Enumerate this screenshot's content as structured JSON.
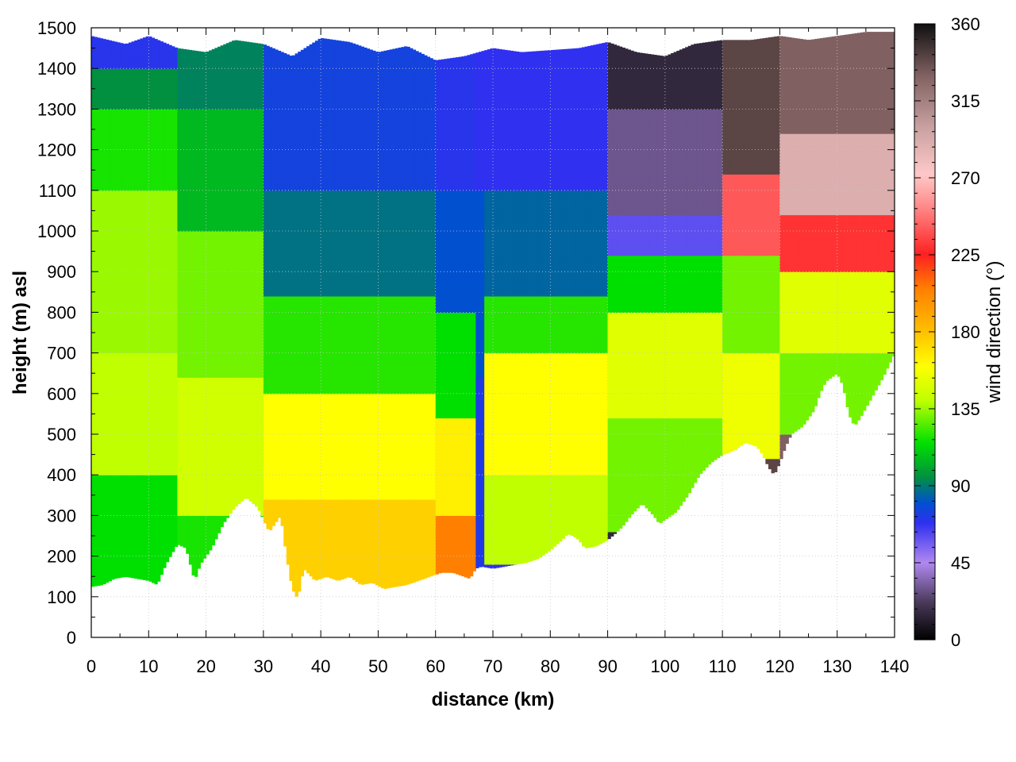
{
  "chart_data": {
    "type": "heatmap",
    "title": "",
    "xlabel": "distance (km)",
    "ylabel": "height (m) asl",
    "colorbar_label": "wind direction (°)",
    "xlim": [
      0,
      140
    ],
    "ylim": [
      0,
      1500
    ],
    "clim": [
      0,
      360
    ],
    "x_ticks": [
      "0",
      "10",
      "20",
      "30",
      "40",
      "50",
      "60",
      "70",
      "80",
      "90",
      "100",
      "110",
      "120",
      "130",
      "140"
    ],
    "y_ticks": [
      "0",
      "100",
      "200",
      "300",
      "400",
      "500",
      "600",
      "700",
      "800",
      "900",
      "1000",
      "1100",
      "1200",
      "1300",
      "1400",
      "1500"
    ],
    "colorbar_ticks": [
      "0",
      "45",
      "90",
      "135",
      "180",
      "225",
      "270",
      "315",
      "360"
    ],
    "grid": true,
    "colormap": [
      {
        "v": 0,
        "color": "#000000"
      },
      {
        "v": 22,
        "color": "#4a3a5a"
      },
      {
        "v": 45,
        "color": "#b088f0"
      },
      {
        "v": 68,
        "color": "#3030f0"
      },
      {
        "v": 80,
        "color": "#0050d0"
      },
      {
        "v": 95,
        "color": "#009040"
      },
      {
        "v": 115,
        "color": "#00e000"
      },
      {
        "v": 140,
        "color": "#c0ff00"
      },
      {
        "v": 160,
        "color": "#ffff00"
      },
      {
        "v": 180,
        "color": "#ffc000"
      },
      {
        "v": 205,
        "color": "#ff8000"
      },
      {
        "v": 225,
        "color": "#ff2020"
      },
      {
        "v": 255,
        "color": "#ff9090"
      },
      {
        "v": 272,
        "color": "#ffc8c8"
      },
      {
        "v": 300,
        "color": "#c8a0a0"
      },
      {
        "v": 330,
        "color": "#806060"
      },
      {
        "v": 360,
        "color": "#101010"
      }
    ],
    "terrain": {
      "x": [
        0,
        2,
        4,
        6,
        8,
        10,
        11.5,
        13,
        15,
        16.5,
        18,
        19,
        21,
        23,
        25,
        27,
        29,
        30,
        31,
        32,
        33,
        34,
        35,
        36,
        37,
        39,
        41,
        43,
        45,
        47,
        49,
        51,
        53,
        55,
        57,
        59,
        61,
        63,
        65,
        66,
        67,
        68,
        70,
        72,
        74,
        76,
        78,
        80,
        82,
        83,
        84,
        85,
        86,
        88,
        90,
        92,
        93,
        94,
        96,
        98,
        99,
        100,
        102,
        104,
        106,
        108,
        110,
        112,
        113,
        114,
        116,
        117,
        118,
        119,
        120,
        121,
        122,
        124,
        125,
        126,
        127,
        128,
        130,
        131,
        132,
        133,
        134,
        136,
        138,
        140
      ],
      "y": [
        125,
        130,
        145,
        150,
        145,
        140,
        130,
        180,
        230,
        220,
        140,
        180,
        220,
        280,
        320,
        345,
        320,
        290,
        260,
        280,
        300,
        200,
        120,
        95,
        170,
        140,
        150,
        140,
        150,
        130,
        135,
        120,
        125,
        130,
        140,
        150,
        160,
        160,
        150,
        145,
        170,
        175,
        170,
        175,
        180,
        185,
        195,
        215,
        240,
        255,
        250,
        240,
        220,
        225,
        240,
        265,
        280,
        300,
        330,
        300,
        280,
        290,
        310,
        350,
        400,
        430,
        450,
        460,
        470,
        480,
        470,
        450,
        420,
        400,
        430,
        470,
        500,
        520,
        540,
        560,
        600,
        630,
        650,
        620,
        550,
        520,
        540,
        590,
        640,
        700
      ]
    },
    "top_boundary": {
      "x": [
        0,
        3,
        6,
        10,
        15,
        20,
        25,
        30,
        35,
        40,
        45,
        50,
        55,
        60,
        65,
        70,
        75,
        80,
        85,
        90,
        95,
        100,
        105,
        110,
        115,
        120,
        125,
        130,
        135,
        140
      ],
      "y": [
        1480,
        1470,
        1460,
        1480,
        1450,
        1440,
        1470,
        1460,
        1430,
        1475,
        1465,
        1440,
        1455,
        1420,
        1430,
        1450,
        1440,
        1445,
        1450,
        1465,
        1440,
        1430,
        1460,
        1470,
        1470,
        1480,
        1470,
        1480,
        1490,
        1490
      ]
    },
    "regions": [
      {
        "x_range": [
          0,
          15
        ],
        "layers": [
          [
            125,
            400,
            115
          ],
          [
            400,
            700,
            140
          ],
          [
            700,
            1100,
            135
          ],
          [
            1100,
            1300,
            118
          ],
          [
            1300,
            1400,
            95
          ],
          [
            1400,
            1500,
            70
          ]
        ]
      },
      {
        "x_range": [
          15,
          30
        ],
        "layers": [
          [
            125,
            300,
            118
          ],
          [
            300,
            650,
            145
          ],
          [
            650,
            1000,
            130
          ],
          [
            1000,
            1300,
            105
          ],
          [
            1300,
            1500,
            92
          ]
        ]
      },
      {
        "x_range": [
          30,
          60
        ],
        "layers": [
          [
            100,
            350,
            175
          ],
          [
            350,
            600,
            160
          ],
          [
            600,
            850,
            120
          ],
          [
            850,
            1100,
            88
          ],
          [
            1100,
            1500,
            75
          ]
        ]
      },
      {
        "x_range": [
          60,
          67
        ],
        "layers": [
          [
            150,
            300,
            205
          ],
          [
            300,
            550,
            165
          ],
          [
            550,
            800,
            115
          ],
          [
            800,
            1100,
            80
          ],
          [
            1100,
            1500,
            70
          ]
        ]
      },
      {
        "x_range": [
          67,
          68.5
        ],
        "layers": [
          [
            150,
            640,
            72
          ],
          [
            640,
            1100,
            80
          ],
          [
            1100,
            1500,
            68
          ]
        ]
      },
      {
        "x_range": [
          68.5,
          90
        ],
        "layers": [
          [
            180,
            400,
            140
          ],
          [
            400,
            700,
            160
          ],
          [
            700,
            850,
            120
          ],
          [
            850,
            1100,
            85
          ],
          [
            1100,
            1500,
            68
          ]
        ]
      },
      {
        "x_range": [
          90,
          110
        ],
        "layers": [
          [
            260,
            550,
            130
          ],
          [
            550,
            800,
            150
          ],
          [
            800,
            950,
            115
          ],
          [
            950,
            1050,
            60
          ],
          [
            1050,
            1300,
            30
          ],
          [
            1300,
            1500,
            15
          ]
        ]
      },
      {
        "x_range": [
          110,
          120
        ],
        "layers": [
          [
            450,
            700,
            155
          ],
          [
            700,
            950,
            130
          ],
          [
            950,
            1150,
            240
          ],
          [
            1150,
            1500,
            340
          ]
        ]
      },
      {
        "x_range": [
          120,
          140
        ],
        "layers": [
          [
            500,
            700,
            130
          ],
          [
            700,
            900,
            150
          ],
          [
            900,
            1050,
            230
          ],
          [
            1050,
            1250,
            290
          ],
          [
            1250,
            1500,
            330
          ]
        ]
      }
    ]
  }
}
